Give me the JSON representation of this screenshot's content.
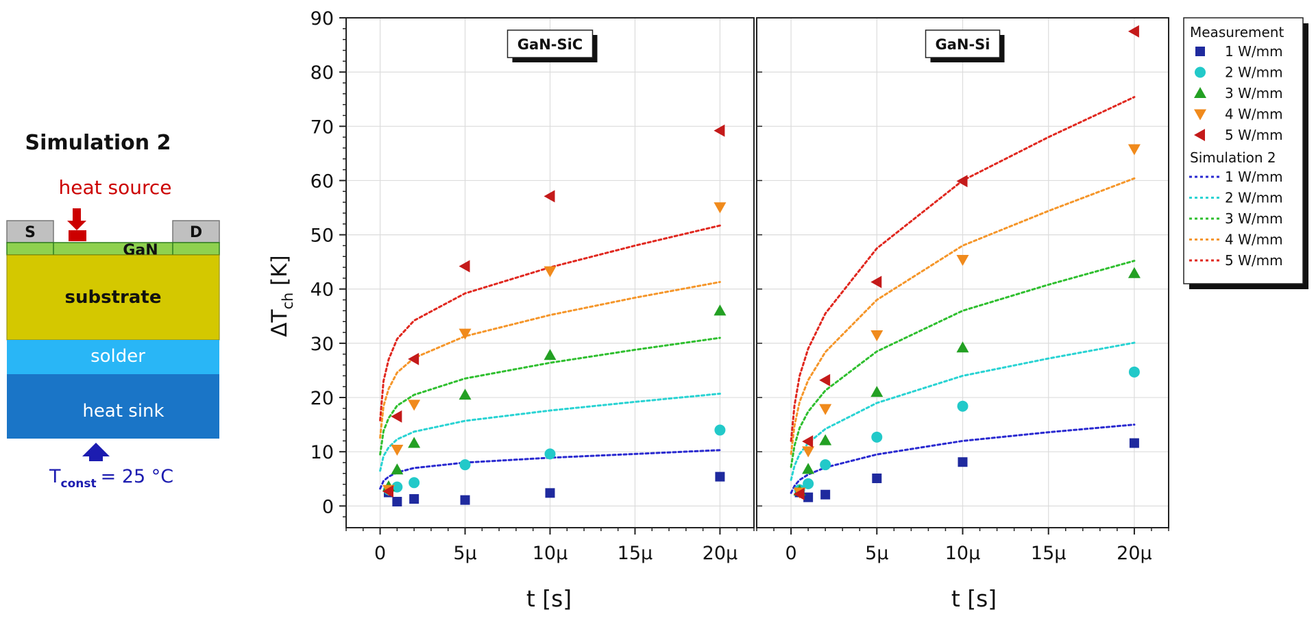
{
  "diagram": {
    "title": "Simulation 2",
    "heat_source_label": "heat source",
    "source_label": "S",
    "drain_label": "D",
    "gan_label": "GaN",
    "substrate_label": "substrate",
    "solder_label": "solder",
    "heatsink_label": "heat sink",
    "tconst_main": "T",
    "tconst_sub": "const",
    "tconst_value": "= 25 °C",
    "colors": {
      "heat_source": "#cc0000",
      "contact": "#c0c0c0",
      "gan": "#8fd14f",
      "substrate": "#d4c800",
      "solder": "#29b6f6",
      "heatsink": "#1a75c7",
      "tconst": "#1c1cb0"
    }
  },
  "chart_data": [
    {
      "type": "scatter",
      "panel_label": "GaN-SiC",
      "xlabel": "t [s]",
      "ylabel_main": "ΔT",
      "ylabel_sub": "ch",
      "ylabel_unit": " [K]",
      "xlim": [
        -2e-06,
        2.2e-05
      ],
      "ylim": [
        -4,
        90
      ],
      "x_ticks": [
        0,
        5e-06,
        1e-05,
        1.5e-05,
        2e-05
      ],
      "x_tick_labels": [
        "0",
        "5μ",
        "10μ",
        "15μ",
        "20μ"
      ],
      "y_ticks": [
        0,
        10,
        20,
        30,
        40,
        50,
        60,
        70,
        80,
        90
      ],
      "y_tick_labels": [
        "0",
        "10",
        "20",
        "30",
        "40",
        "50",
        "60",
        "70",
        "80",
        "90"
      ],
      "grid": true,
      "measurement_x": [
        5e-07,
        1e-06,
        2e-06,
        5e-06,
        1e-05,
        2e-05
      ],
      "measurements": [
        {
          "name": "1 W/mm",
          "marker": "square",
          "color": "#1f2a9e",
          "values": [
            2.5,
            0.8,
            1.3,
            1.1,
            2.4,
            5.4
          ]
        },
        {
          "name": "2 W/mm",
          "marker": "circle",
          "color": "#22c9c9",
          "values": [
            3.0,
            3.5,
            4.3,
            7.6,
            9.6,
            14.0
          ]
        },
        {
          "name": "3 W/mm",
          "marker": "triangle-up",
          "color": "#23a023",
          "values": [
            3.6,
            6.7,
            11.6,
            20.5,
            27.8,
            36.0
          ]
        },
        {
          "name": "4 W/mm",
          "marker": "triangle-down",
          "color": "#f08a1c",
          "values": [
            3.0,
            10.4,
            18.7,
            31.8,
            43.3,
            55.1
          ]
        },
        {
          "name": "5 W/mm",
          "marker": "triangle-left",
          "color": "#c41a1a",
          "values": [
            2.7,
            16.5,
            27.1,
            44.2,
            57.1,
            69.2
          ]
        }
      ],
      "simulations": [
        {
          "name": "1 W/mm",
          "color": "#2a2ad0",
          "x": [
            0,
            2e-07,
            5e-07,
            1e-06,
            2e-06,
            5e-06,
            1e-05,
            1.5e-05,
            2e-05
          ],
          "values": [
            3.2,
            4.6,
            5.4,
            6.2,
            7.0,
            8.0,
            8.9,
            9.6,
            10.3
          ]
        },
        {
          "name": "2 W/mm",
          "color": "#29d3d3",
          "x": [
            0,
            2e-07,
            5e-07,
            1e-06,
            2e-06,
            5e-06,
            1e-05,
            1.5e-05,
            2e-05
          ],
          "values": [
            6.5,
            9.2,
            10.8,
            12.3,
            13.7,
            15.7,
            17.6,
            19.2,
            20.7
          ]
        },
        {
          "name": "3 W/mm",
          "color": "#2fbf2f",
          "x": [
            0,
            2e-07,
            5e-07,
            1e-06,
            2e-06,
            5e-06,
            1e-05,
            1.5e-05,
            2e-05
          ],
          "values": [
            9.5,
            13.8,
            16.2,
            18.5,
            20.5,
            23.5,
            26.4,
            28.8,
            31.0
          ]
        },
        {
          "name": "4 W/mm",
          "color": "#f5962a",
          "x": [
            0,
            2e-07,
            5e-07,
            1e-06,
            2e-06,
            5e-06,
            1e-05,
            1.5e-05,
            2e-05
          ],
          "values": [
            12.6,
            18.4,
            21.6,
            24.6,
            27.3,
            31.3,
            35.2,
            38.4,
            41.3
          ]
        },
        {
          "name": "5 W/mm",
          "color": "#e0281f",
          "x": [
            0,
            2e-07,
            5e-07,
            1e-06,
            2e-06,
            5e-06,
            1e-05,
            1.5e-05,
            2e-05
          ],
          "values": [
            15.8,
            23.0,
            27.0,
            30.8,
            34.2,
            39.2,
            44.0,
            48.0,
            51.7
          ]
        }
      ]
    },
    {
      "type": "scatter",
      "panel_label": "GaN-Si",
      "xlabel": "t [s]",
      "xlim": [
        -2e-06,
        2.2e-05
      ],
      "ylim": [
        -4,
        90
      ],
      "x_ticks": [
        0,
        5e-06,
        1e-05,
        1.5e-05,
        2e-05
      ],
      "x_tick_labels": [
        "0",
        "5μ",
        "10μ",
        "15μ",
        "20μ"
      ],
      "grid": true,
      "measurement_x": [
        5e-07,
        1e-06,
        2e-06,
        5e-06,
        1e-05,
        2e-05
      ],
      "measurements": [
        {
          "name": "1 W/mm",
          "marker": "square",
          "color": "#1f2a9e",
          "values": [
            2.5,
            1.6,
            2.1,
            5.1,
            8.1,
            11.6
          ]
        },
        {
          "name": "2 W/mm",
          "marker": "circle",
          "color": "#22c9c9",
          "values": [
            3.0,
            4.1,
            7.6,
            12.7,
            18.4,
            24.7
          ]
        },
        {
          "name": "3 W/mm",
          "marker": "triangle-up",
          "color": "#23a023",
          "values": [
            2.8,
            6.8,
            12.1,
            21.0,
            29.2,
            42.9
          ]
        },
        {
          "name": "4 W/mm",
          "marker": "triangle-down",
          "color": "#f08a1c",
          "values": [
            2.5,
            10.1,
            17.9,
            31.5,
            45.4,
            65.8
          ]
        },
        {
          "name": "5 W/mm",
          "marker": "triangle-left",
          "color": "#c41a1a",
          "values": [
            2.2,
            11.9,
            23.2,
            41.3,
            59.9,
            87.5
          ]
        }
      ],
      "simulations": [
        {
          "name": "1 W/mm",
          "color": "#2a2ad0",
          "x": [
            0,
            2e-07,
            5e-07,
            1e-06,
            2e-06,
            5e-06,
            1e-05,
            1.5e-05,
            2e-05
          ],
          "values": [
            2.4,
            3.7,
            4.8,
            5.8,
            7.1,
            9.5,
            12.0,
            13.6,
            15.0
          ]
        },
        {
          "name": "2 W/mm",
          "color": "#29d3d3",
          "x": [
            0,
            2e-07,
            5e-07,
            1e-06,
            2e-06,
            5e-06,
            1e-05,
            1.5e-05,
            2e-05
          ],
          "values": [
            4.8,
            7.4,
            9.6,
            11.6,
            14.2,
            19.0,
            24.0,
            27.2,
            30.1
          ]
        },
        {
          "name": "3 W/mm",
          "color": "#2fbf2f",
          "x": [
            0,
            2e-07,
            5e-07,
            1e-06,
            2e-06,
            5e-06,
            1e-05,
            1.5e-05,
            2e-05
          ],
          "values": [
            7.2,
            11.1,
            14.4,
            17.4,
            21.3,
            28.5,
            36.0,
            40.8,
            45.2
          ]
        },
        {
          "name": "4 W/mm",
          "color": "#f5962a",
          "x": [
            0,
            2e-07,
            5e-07,
            1e-06,
            2e-06,
            5e-06,
            1e-05,
            1.5e-05,
            2e-05
          ],
          "values": [
            9.6,
            14.8,
            19.2,
            23.2,
            28.4,
            38.0,
            48.0,
            54.4,
            60.4
          ]
        },
        {
          "name": "5 W/mm",
          "color": "#e0281f",
          "x": [
            0,
            2e-07,
            5e-07,
            1e-06,
            2e-06,
            5e-06,
            1e-05,
            1.5e-05,
            2e-05
          ],
          "values": [
            12.0,
            18.5,
            24.0,
            29.0,
            35.5,
            47.5,
            60.0,
            68.0,
            75.4
          ]
        }
      ]
    }
  ],
  "legend": {
    "measurement_title": "Measurement",
    "simulation_title": "Simulation 2",
    "placement": "right"
  }
}
